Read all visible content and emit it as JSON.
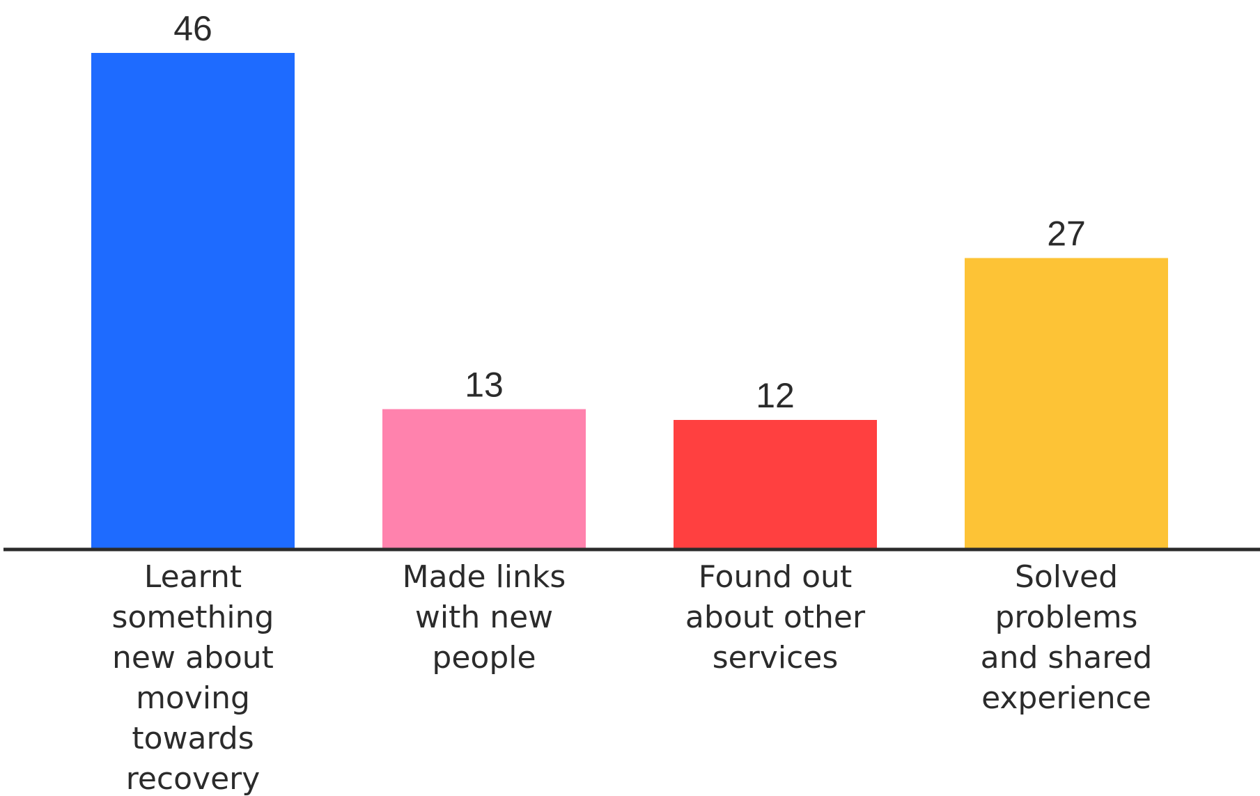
{
  "chart_data": {
    "type": "bar",
    "categories": [
      [
        "Learnt",
        "something",
        "new about",
        "moving",
        "towards",
        "recovery"
      ],
      [
        "Made links",
        "with new",
        "people"
      ],
      [
        "Found out",
        "about other",
        "services"
      ],
      [
        "Solved",
        "problems",
        "and shared",
        "experience"
      ]
    ],
    "values": [
      46,
      13,
      12,
      27
    ],
    "colors": [
      "#1e6bff",
      "#ff82ad",
      "#ff4040",
      "#fdc336"
    ],
    "axis_color": "#2b2b2b",
    "title": "",
    "xlabel": "",
    "ylabel": "",
    "ylim": [
      0,
      46
    ],
    "grid": false,
    "legend": "none",
    "data_labels": true
  }
}
